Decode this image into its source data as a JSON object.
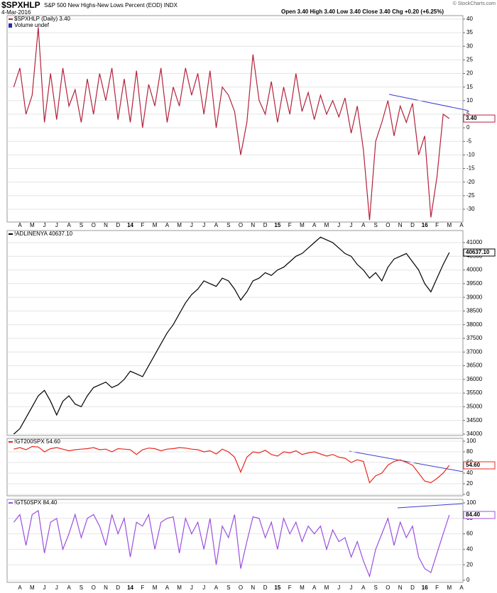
{
  "chart_data": [
    {
      "type": "line",
      "title": "$SPXHLP",
      "subtitle": "S&P 500 New Highs-New Lows Percent (EOD) INDX",
      "date": "4-Mar-2016",
      "quote": "Open 3.40 High 3.40 Low 3.40 Close 3.40 Chg +0.20 (+6.25%)",
      "credit": "© StockCharts.com",
      "legend_extra": "Volume undef",
      "last_label": "3.40",
      "categories": [
        null,
        "A",
        null,
        "M",
        null,
        "J",
        null,
        "J",
        null,
        "A",
        null,
        "S",
        null,
        "O",
        null,
        "N",
        null,
        "D",
        null,
        "14",
        null,
        "F",
        null,
        "M",
        null,
        "A",
        null,
        "M",
        null,
        "J",
        null,
        "J",
        null,
        "A",
        null,
        "S",
        null,
        "O",
        null,
        "N",
        null,
        "D",
        null,
        "15",
        null,
        "F",
        null,
        "M",
        null,
        "A",
        null,
        "M",
        null,
        "J",
        null,
        "J",
        null,
        "A",
        null,
        "S",
        null,
        "O",
        null,
        "N",
        null,
        "D",
        null,
        "16",
        null,
        "F",
        null,
        "M",
        null,
        "A"
      ],
      "series": [
        {
          "name": "$SPXHLP (Daily) 3.40",
          "color": "#b3223c",
          "values": [
            15,
            22,
            5,
            12,
            37,
            2,
            20,
            3,
            22,
            8,
            14,
            2,
            18,
            5,
            20,
            10,
            22,
            3,
            18,
            2,
            21,
            0,
            16,
            8,
            22,
            2,
            15,
            8,
            22,
            12,
            20,
            5,
            21,
            0,
            15,
            12,
            6,
            -10,
            2,
            27,
            10,
            5,
            17,
            2,
            15,
            5,
            20,
            6,
            13,
            3,
            12,
            5,
            10,
            4,
            11,
            -2,
            8,
            -8,
            -34,
            -5,
            2,
            10,
            -3,
            8,
            2,
            9,
            -10,
            -3,
            -33,
            -18,
            5,
            3.4,
            null,
            null
          ]
        }
      ],
      "ylim": [
        -34.7,
        41.3
      ],
      "yticks": [
        40,
        35,
        30,
        25,
        20,
        15,
        10,
        5,
        0,
        -5,
        -10,
        -15,
        -20,
        -25,
        -30
      ],
      "grid": true
    },
    {
      "type": "line",
      "last_label": "40637.10",
      "series": [
        {
          "name": "!ADLINENYA 40637.10",
          "color": "#000000",
          "values": [
            34000,
            34200,
            34600,
            35000,
            35400,
            35600,
            35200,
            34700,
            35200,
            35400,
            35100,
            35000,
            35400,
            35700,
            35800,
            35900,
            35700,
            35800,
            36000,
            36300,
            36200,
            36100,
            36500,
            36900,
            37300,
            37700,
            38000,
            38400,
            38800,
            39100,
            39300,
            39600,
            39500,
            39400,
            39700,
            39600,
            39300,
            38900,
            39200,
            39600,
            39700,
            39900,
            39800,
            40000,
            40100,
            40300,
            40500,
            40600,
            40800,
            41000,
            41200,
            41100,
            41000,
            40800,
            40600,
            40500,
            40200,
            40000,
            39700,
            39900,
            39600,
            40100,
            40400,
            40500,
            40600,
            40300,
            40000,
            39500,
            39200,
            39700,
            40200,
            40637.1,
            null,
            null
          ]
        }
      ],
      "ylim": [
        33948,
        41441
      ],
      "yticks": [
        34000,
        34500,
        35000,
        35500,
        36000,
        36500,
        37000,
        37500,
        38000,
        38500,
        39000,
        39500,
        40000,
        40500,
        41000
      ],
      "grid": true
    },
    {
      "type": "line",
      "last_label": "54.60",
      "series": [
        {
          "name": "!GT200SPX 54.60",
          "color": "#e8281e",
          "values": [
            85,
            88,
            84,
            90,
            89,
            80,
            86,
            88,
            85,
            82,
            84,
            85,
            86,
            88,
            84,
            85,
            80,
            86,
            85,
            84,
            75,
            84,
            87,
            86,
            82,
            85,
            86,
            88,
            87,
            85,
            84,
            80,
            82,
            76,
            85,
            80,
            70,
            42,
            70,
            80,
            78,
            83,
            75,
            72,
            80,
            78,
            82,
            75,
            78,
            80,
            76,
            72,
            75,
            70,
            68,
            60,
            65,
            62,
            22,
            35,
            40,
            55,
            62,
            65,
            60,
            55,
            40,
            25,
            22,
            30,
            40,
            54.6,
            null,
            null
          ]
        }
      ],
      "ylim": [
        -2.7,
        105.3
      ],
      "yticks": [
        0,
        20,
        40,
        60,
        80,
        100
      ],
      "grid": true
    },
    {
      "type": "line",
      "last_label": "84.40",
      "categories": [
        null,
        "A",
        null,
        "M",
        null,
        "J",
        null,
        "J",
        null,
        "A",
        null,
        "S",
        null,
        "O",
        null,
        "N",
        null,
        "D",
        null,
        "14",
        null,
        "F",
        null,
        "M",
        null,
        "A",
        null,
        "M",
        null,
        "J",
        null,
        "J",
        null,
        "A",
        null,
        "S",
        null,
        "O",
        null,
        "N",
        null,
        "D",
        null,
        "15",
        null,
        "F",
        null,
        "M",
        null,
        "A",
        null,
        "M",
        null,
        "J",
        null,
        "J",
        null,
        "A",
        null,
        "S",
        null,
        "O",
        null,
        "N",
        null,
        "D",
        null,
        "16",
        null,
        "F",
        null,
        "M",
        null,
        "A"
      ],
      "series": [
        {
          "name": "!GT50SPX 84.40",
          "color": "#9b4fe0",
          "values": [
            75,
            85,
            45,
            85,
            90,
            35,
            75,
            80,
            40,
            60,
            85,
            55,
            80,
            85,
            70,
            45,
            85,
            60,
            80,
            30,
            75,
            70,
            85,
            40,
            75,
            80,
            82,
            35,
            80,
            60,
            75,
            40,
            80,
            20,
            70,
            55,
            85,
            15,
            50,
            82,
            80,
            55,
            75,
            40,
            80,
            60,
            75,
            50,
            70,
            60,
            70,
            40,
            65,
            50,
            55,
            30,
            50,
            25,
            5,
            40,
            60,
            80,
            45,
            75,
            55,
            70,
            30,
            15,
            10,
            35,
            60,
            84.4,
            null,
            null
          ]
        }
      ],
      "ylim": [
        -2.8,
        104.6
      ],
      "yticks": [
        0,
        20,
        40,
        60,
        80,
        100
      ],
      "grid": true
    }
  ]
}
